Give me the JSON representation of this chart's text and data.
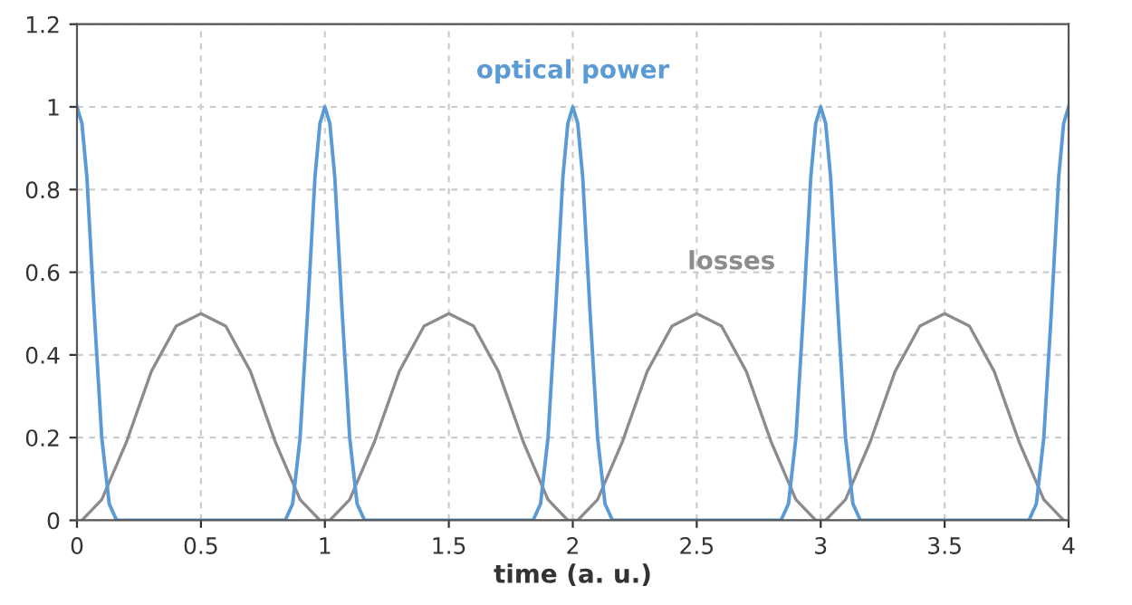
{
  "chart_data": {
    "type": "line",
    "xlabel": "time (a. u.)",
    "xlim": [
      0,
      4
    ],
    "ylim": [
      0,
      1.2
    ],
    "xticks": [
      0,
      0.5,
      1,
      1.5,
      2,
      2.5,
      3,
      3.5,
      4
    ],
    "yticks": [
      0,
      0.2,
      0.4,
      0.6,
      0.8,
      1,
      1.2
    ],
    "grid": true,
    "legend": false,
    "marker": "none",
    "line_style": "solid",
    "series": [
      {
        "name": "losses",
        "color": "#8c8c8c",
        "x": [
          0.02,
          0.1,
          0.2,
          0.3,
          0.4,
          0.5,
          0.6,
          0.7,
          0.8,
          0.9,
          0.98,
          1.02,
          1.1,
          1.2,
          1.3,
          1.4,
          1.5,
          1.6,
          1.7,
          1.8,
          1.9,
          1.98,
          2.02,
          2.1,
          2.2,
          2.3,
          2.4,
          2.5,
          2.6,
          2.7,
          2.8,
          2.9,
          2.98,
          3.02,
          3.1,
          3.2,
          3.3,
          3.4,
          3.5,
          3.6,
          3.7,
          3.8,
          3.9,
          3.98
        ],
        "values": [
          0,
          0.05,
          0.19,
          0.36,
          0.47,
          0.5,
          0.47,
          0.36,
          0.19,
          0.05,
          0,
          0,
          0.05,
          0.19,
          0.36,
          0.47,
          0.5,
          0.47,
          0.36,
          0.19,
          0.05,
          0,
          0,
          0.05,
          0.19,
          0.36,
          0.47,
          0.5,
          0.47,
          0.36,
          0.19,
          0.05,
          0,
          0,
          0.05,
          0.19,
          0.36,
          0.47,
          0.5,
          0.47,
          0.36,
          0.19,
          0.05,
          0
        ]
      },
      {
        "name": "optical power",
        "color": "#5b9bd5",
        "x": [
          0,
          0.02,
          0.04,
          0.07,
          0.1,
          0.13,
          0.16,
          0.84,
          0.87,
          0.9,
          0.93,
          0.96,
          0.98,
          1,
          1.02,
          1.04,
          1.07,
          1.1,
          1.13,
          1.16,
          1.84,
          1.87,
          1.9,
          1.93,
          1.96,
          1.98,
          2,
          2.02,
          2.04,
          2.07,
          2.1,
          2.13,
          2.16,
          2.84,
          2.87,
          2.9,
          2.93,
          2.96,
          2.98,
          3,
          3.02,
          3.04,
          3.07,
          3.1,
          3.13,
          3.16,
          3.84,
          3.87,
          3.9,
          3.93,
          3.96,
          3.98,
          4
        ],
        "values": [
          1,
          0.96,
          0.83,
          0.5,
          0.2,
          0.04,
          0,
          0,
          0.04,
          0.2,
          0.5,
          0.83,
          0.96,
          1,
          0.96,
          0.83,
          0.5,
          0.2,
          0.04,
          0,
          0,
          0.04,
          0.2,
          0.5,
          0.83,
          0.96,
          1,
          0.96,
          0.83,
          0.5,
          0.2,
          0.04,
          0,
          0,
          0.04,
          0.2,
          0.5,
          0.83,
          0.96,
          1,
          0.96,
          0.83,
          0.5,
          0.2,
          0.04,
          0,
          0,
          0.04,
          0.2,
          0.5,
          0.83,
          0.96,
          1
        ]
      }
    ]
  }
}
